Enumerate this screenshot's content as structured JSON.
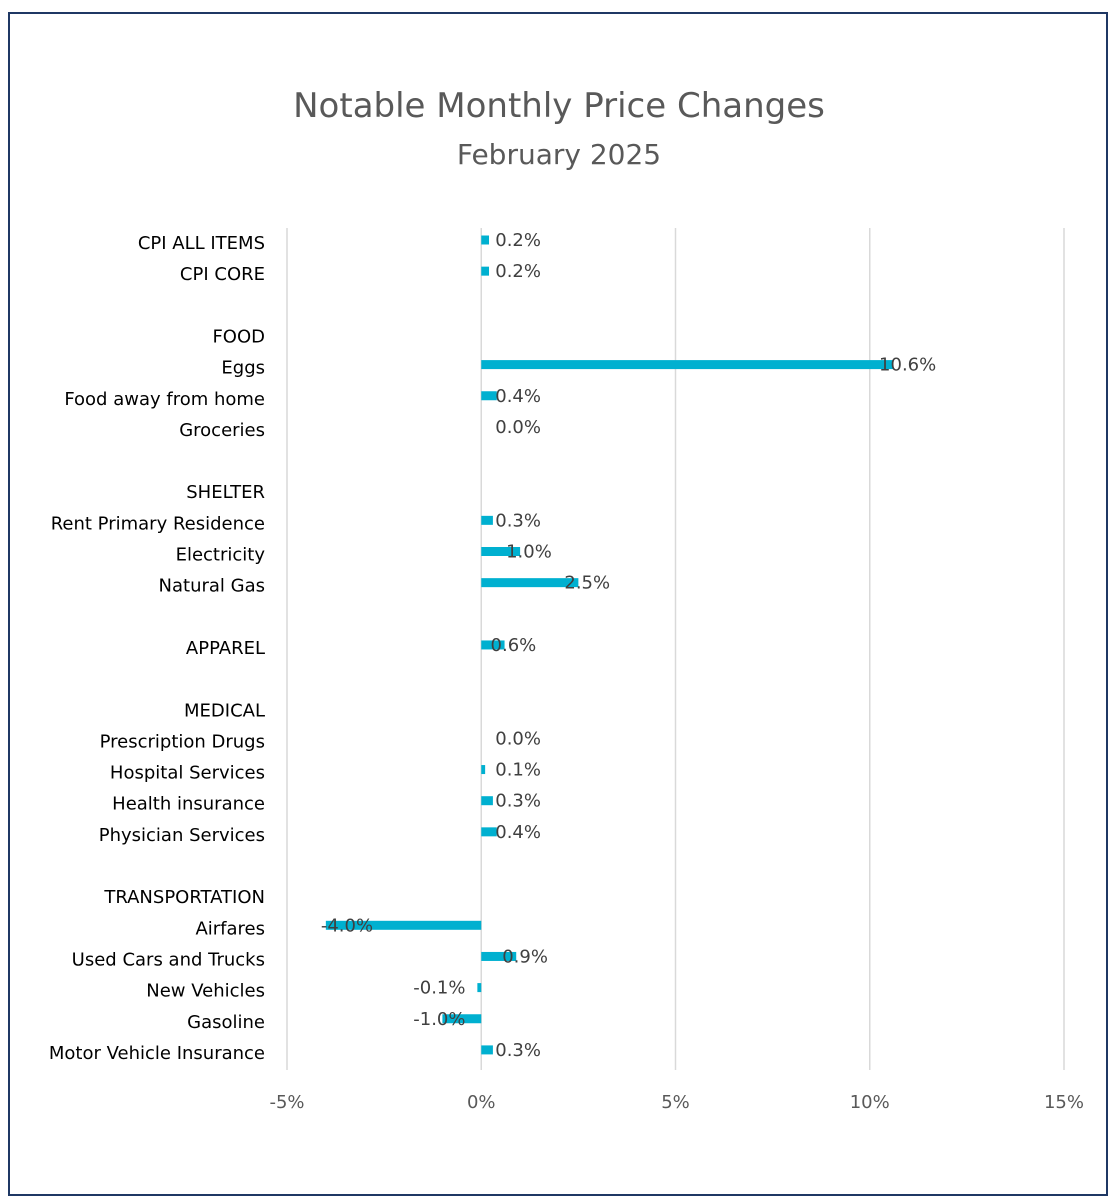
{
  "chart_data": {
    "type": "bar",
    "orientation": "horizontal",
    "title": "Notable Monthly Price Changes",
    "subtitle": "February 2025",
    "categories": [
      "CPI ALL ITEMS",
      "CPI CORE",
      "",
      "FOOD",
      "Eggs",
      "Food away from home",
      "Groceries",
      "",
      "SHELTER",
      "Rent Primary Residence",
      "Electricity",
      "Natural Gas",
      "",
      "APPAREL",
      "",
      "MEDICAL",
      "Prescription Drugs",
      "Hospital Services",
      "Health insurance",
      "Physician Services",
      "",
      "TRANSPORTATION",
      "Airfares",
      "Used Cars and Trucks",
      "New Vehicles",
      "Gasoline",
      "Motor Vehicle Insurance"
    ],
    "values": [
      0.2,
      0.2,
      null,
      null,
      10.6,
      0.4,
      0.0,
      null,
      null,
      0.3,
      1.0,
      2.5,
      null,
      0.6,
      null,
      null,
      0.0,
      0.1,
      0.3,
      0.4,
      null,
      null,
      -4.0,
      0.9,
      -0.1,
      -1.0,
      0.3
    ],
    "data_labels": [
      "0.2%",
      "0.2%",
      "",
      "",
      "10.6%",
      "0.4%",
      "0.0%",
      "",
      "",
      "0.3%",
      "1.0%",
      "2.5%",
      "",
      "0.6%",
      "",
      "",
      "0.0%",
      "0.1%",
      "0.3%",
      "0.4%",
      "",
      "",
      "-4.0%",
      "0.9%",
      "-0.1%",
      "-1.0%",
      "0.3%"
    ],
    "x_ticks": [
      -5,
      0,
      5,
      10,
      15
    ],
    "x_tick_labels": [
      "-5%",
      "0%",
      "5%",
      "10%",
      "15%"
    ],
    "xlim": [
      -5,
      15
    ],
    "grid": "vertical",
    "legend": "none",
    "bar_color": "#00b0d0",
    "frame_color": "#1f3864"
  }
}
